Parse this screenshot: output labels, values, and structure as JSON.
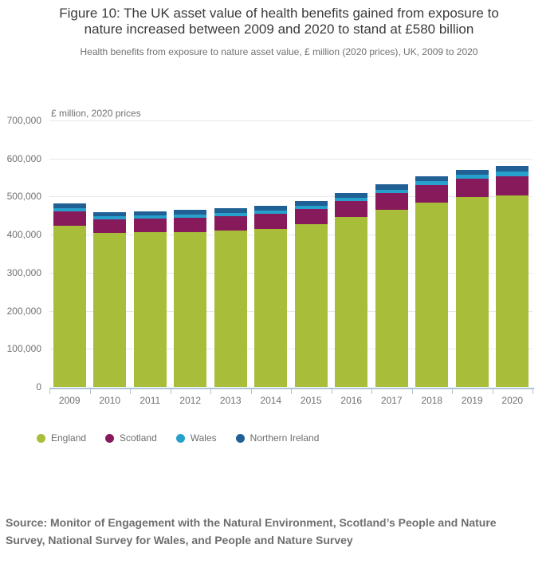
{
  "header": {
    "title_line1": "Figure 10: The UK asset value of health benefits gained from exposure to",
    "title_line2": "nature increased between 2009 and 2020 to stand at £580 billion",
    "subtitle": "Health benefits from exposure to nature asset value, £ million (2020 prices), UK, 2009 to 2020"
  },
  "chart_data": {
    "type": "bar",
    "stacked": true,
    "title": "Figure 10: The UK asset value of health benefits gained from exposure to nature increased between 2009 and 2020 to stand at £580 billion",
    "subtitle": "Health benefits from exposure to nature asset value, £ million (2020 prices), UK, 2009 to 2020",
    "unit_label": "£ million, 2020 prices",
    "categories": [
      "2009",
      "2010",
      "2011",
      "2012",
      "2013",
      "2014",
      "2015",
      "2016",
      "2017",
      "2018",
      "2019",
      "2020"
    ],
    "series": [
      {
        "name": "England",
        "color": "#a8bd3a",
        "values": [
          424000,
          404000,
          406000,
          407000,
          411000,
          416000,
          428000,
          447000,
          465000,
          484000,
          499000,
          504000
        ]
      },
      {
        "name": "Scotland",
        "color": "#871a5b",
        "values": [
          38000,
          36000,
          36000,
          37000,
          38000,
          38000,
          39000,
          42000,
          44000,
          47000,
          48000,
          50000
        ]
      },
      {
        "name": "Wales",
        "color": "#27a0cc",
        "values": [
          8000,
          8000,
          8000,
          8000,
          8000,
          9000,
          9000,
          8000,
          8000,
          9000,
          10000,
          11000
        ]
      },
      {
        "name": "Northern Ireland",
        "color": "#206095",
        "values": [
          13000,
          11000,
          12000,
          13000,
          12000,
          13000,
          13000,
          13000,
          15000,
          14000,
          14000,
          15000
        ]
      }
    ],
    "totals": [
      483000,
      459000,
      462000,
      465000,
      469000,
      476000,
      489000,
      510000,
      532000,
      554000,
      571000,
      580000
    ],
    "ylim": [
      0,
      700000
    ],
    "ytick_interval": 100000,
    "ytick_labels": [
      "0",
      "100,000",
      "200,000",
      "300,000",
      "400,000",
      "500,000",
      "600,000",
      "700,000"
    ],
    "grid": "horizontal",
    "legend_position": "bottom-left"
  },
  "legend": {
    "items": [
      {
        "label": "England",
        "color": "#a8bd3a"
      },
      {
        "label": "Scotland",
        "color": "#871a5b"
      },
      {
        "label": "Wales",
        "color": "#27a0cc"
      },
      {
        "label": "Northern Ireland",
        "color": "#206095"
      }
    ]
  },
  "source": {
    "text": "Source: Monitor of Engagement with the Natural Environment, Scotland’s People and Nature Survey, National Survey for Wales, and People and Nature Survey",
    "line1": "Source: Monitor of Engagement with the Natural Environment, Scotland’s People and Nature",
    "line2": "Survey, National Survey for Wales, and People and Nature Survey"
  }
}
